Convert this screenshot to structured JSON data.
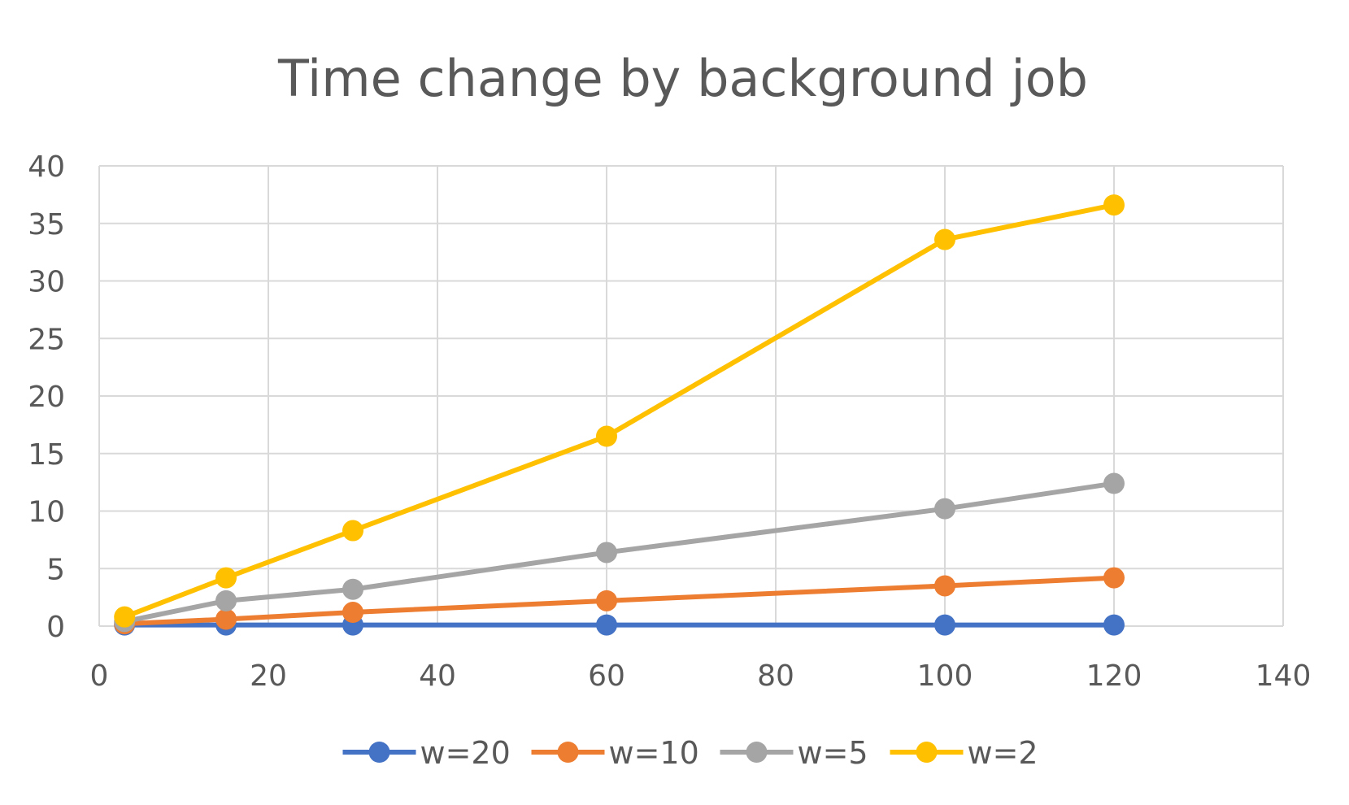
{
  "chart_data": {
    "type": "scatter",
    "title": "Time change by background job",
    "xlabel": "",
    "ylabel": "",
    "xlim": [
      0,
      140
    ],
    "ylim": [
      0,
      40
    ],
    "x_ticks": [
      0,
      20,
      40,
      60,
      80,
      100,
      120,
      140
    ],
    "y_ticks": [
      0,
      5,
      10,
      15,
      20,
      25,
      30,
      35,
      40
    ],
    "grid": true,
    "legend_position": "bottom",
    "x": [
      3,
      15,
      30,
      60,
      100,
      120
    ],
    "series": [
      {
        "name": "w=20",
        "color": "#4472C4",
        "values": [
          0.1,
          0.1,
          0.1,
          0.1,
          0.1,
          0.1
        ]
      },
      {
        "name": "w=10",
        "color": "#ED7D31",
        "values": [
          0.2,
          0.6,
          1.2,
          2.2,
          3.5,
          4.2
        ]
      },
      {
        "name": "w=5",
        "color": "#A5A5A5",
        "values": [
          0.4,
          2.2,
          3.2,
          6.4,
          10.2,
          12.4
        ]
      },
      {
        "name": "w=2",
        "color": "#FFC000",
        "values": [
          0.8,
          4.2,
          8.3,
          16.5,
          33.6,
          36.6
        ]
      }
    ]
  }
}
